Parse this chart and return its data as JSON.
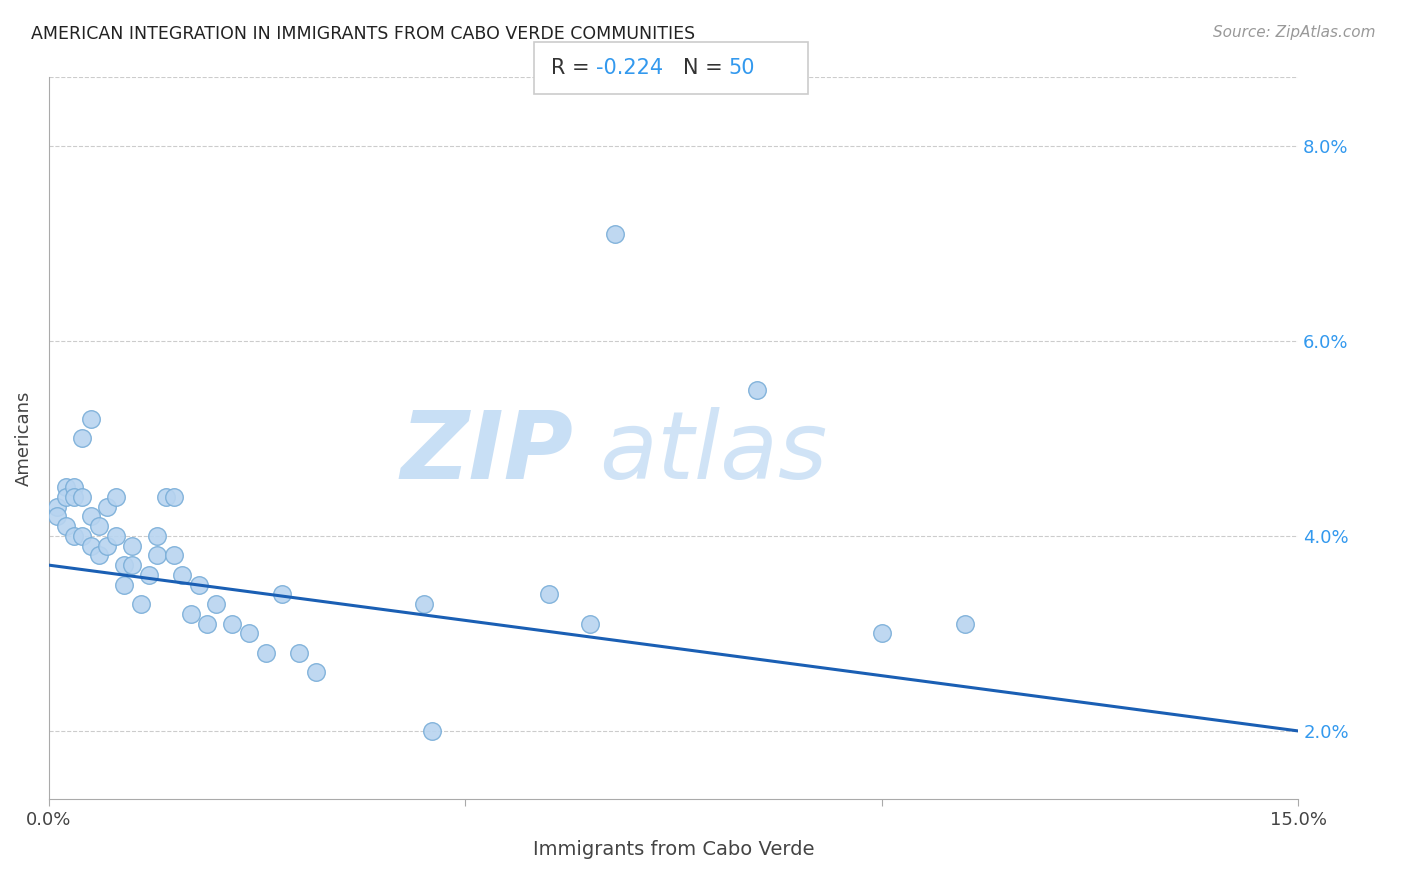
{
  "title": "AMERICAN INTEGRATION IN IMMIGRANTS FROM CABO VERDE COMMUNITIES",
  "source": "Source: ZipAtlas.com",
  "xlabel": "Immigrants from Cabo Verde",
  "ylabel": "Americans",
  "R": -0.224,
  "N": 50,
  "xlim": [
    0.0,
    0.15
  ],
  "ylim": [
    0.013,
    0.087
  ],
  "xticks": [
    0.0,
    0.05,
    0.1,
    0.15
  ],
  "xtick_labels": [
    "0.0%",
    "",
    "",
    "15.0%"
  ],
  "yticks": [
    0.02,
    0.03,
    0.04,
    0.05,
    0.06,
    0.07,
    0.08
  ],
  "ytick_labels": [
    "2.0%",
    "",
    "4.0%",
    "",
    "6.0%",
    "",
    "8.0%"
  ],
  "scatter_color": "#b8d4f0",
  "scatter_edgecolor": "#7aaed8",
  "line_color": "#1a5fb4",
  "scatter_x": [
    0.001,
    0.001,
    0.002,
    0.002,
    0.002,
    0.003,
    0.003,
    0.003,
    0.004,
    0.004,
    0.004,
    0.005,
    0.005,
    0.005,
    0.006,
    0.006,
    0.007,
    0.007,
    0.008,
    0.008,
    0.009,
    0.009,
    0.01,
    0.01,
    0.011,
    0.012,
    0.013,
    0.013,
    0.014,
    0.015,
    0.015,
    0.016,
    0.017,
    0.018,
    0.019,
    0.02,
    0.022,
    0.024,
    0.026,
    0.028,
    0.03,
    0.032,
    0.045,
    0.046,
    0.06,
    0.065,
    0.068,
    0.085,
    0.1,
    0.11
  ],
  "scatter_y": [
    0.043,
    0.042,
    0.045,
    0.044,
    0.041,
    0.045,
    0.044,
    0.04,
    0.05,
    0.044,
    0.04,
    0.052,
    0.042,
    0.039,
    0.041,
    0.038,
    0.043,
    0.039,
    0.044,
    0.04,
    0.037,
    0.035,
    0.039,
    0.037,
    0.033,
    0.036,
    0.04,
    0.038,
    0.044,
    0.044,
    0.038,
    0.036,
    0.032,
    0.035,
    0.031,
    0.033,
    0.031,
    0.03,
    0.028,
    0.034,
    0.028,
    0.026,
    0.033,
    0.02,
    0.034,
    0.031,
    0.071,
    0.055,
    0.03,
    0.031
  ],
  "line_x0": 0.0,
  "line_x1": 0.15,
  "line_y0": 0.037,
  "line_y1": 0.02
}
